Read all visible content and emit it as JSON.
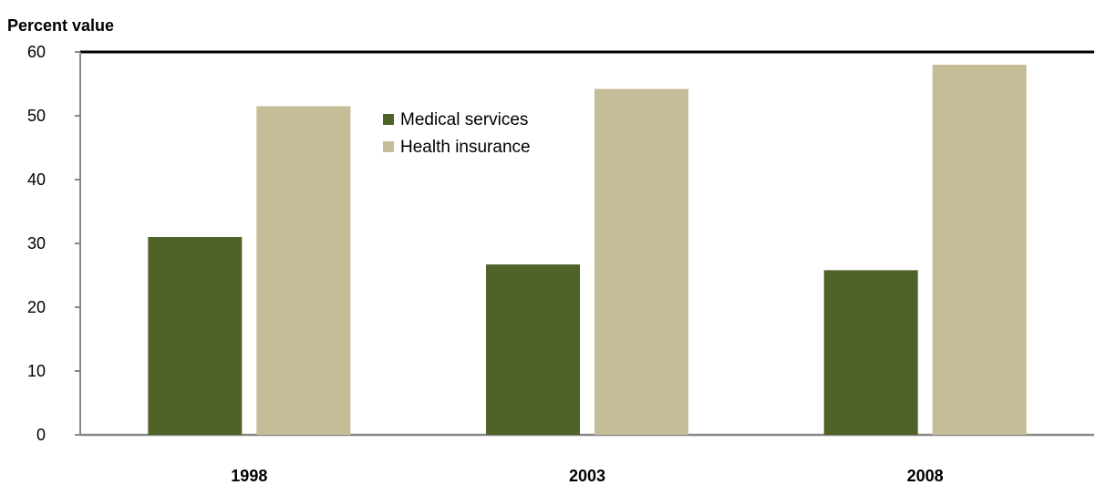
{
  "chart_data": {
    "type": "bar",
    "ylabel": "Percent value",
    "xlabel": "",
    "categories": [
      "1998",
      "2003",
      "2008"
    ],
    "series": [
      {
        "name": "Medical services",
        "values": [
          31,
          26.7,
          25.8
        ],
        "color": "#4f6228"
      },
      {
        "name": "Health insurance",
        "values": [
          51.5,
          54.2,
          58
        ],
        "color": "#c4bd97"
      }
    ],
    "ylim": [
      0,
      60
    ],
    "yticks": [
      0,
      10,
      20,
      30,
      40,
      50,
      60
    ],
    "grid": false,
    "legend_position": "top-center"
  }
}
